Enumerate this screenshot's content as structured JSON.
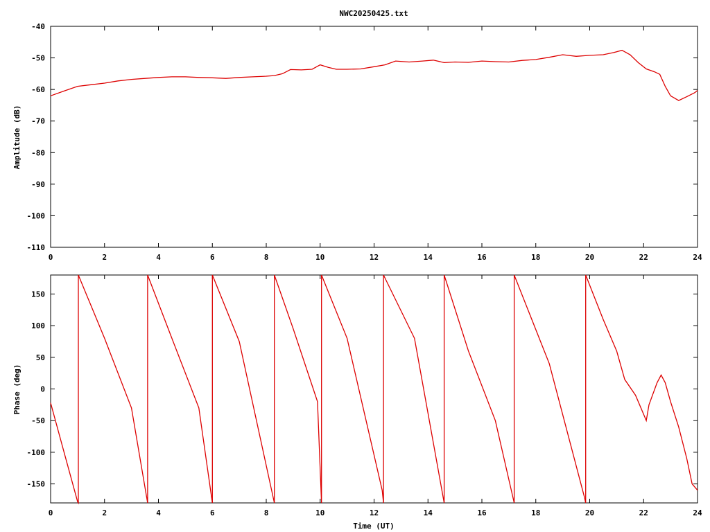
{
  "title": "NWC20250425.txt",
  "colors": {
    "series": "#dd0000",
    "axis": "#000000",
    "background": "#ffffff"
  },
  "chart_data": [
    {
      "type": "line",
      "ylabel": "Amplitude (dB)",
      "xlabel": "",
      "xlim": [
        0,
        24
      ],
      "ylim": [
        -110,
        -40
      ],
      "x_ticks": [
        0,
        2,
        4,
        6,
        8,
        10,
        12,
        14,
        16,
        18,
        20,
        22,
        24
      ],
      "y_ticks": [
        -40,
        -50,
        -60,
        -70,
        -80,
        -90,
        -100,
        -110
      ],
      "x_tick_labels": [
        "0",
        "2",
        "4",
        "6",
        "8",
        "10",
        "12",
        "14",
        "16",
        "18",
        "20",
        "22",
        "24"
      ],
      "y_tick_labels": [
        "-40",
        "-50",
        "-60",
        "-70",
        "-80",
        "-90",
        "-100",
        "-110"
      ],
      "grid": false,
      "series": [
        {
          "x": [
            0,
            0.5,
            1,
            1.5,
            2,
            2.5,
            3,
            3.5,
            4,
            4.5,
            5,
            5.5,
            6,
            6.5,
            7,
            7.5,
            8,
            8.3,
            8.6,
            8.9,
            9.3,
            9.7,
            10,
            10.3,
            10.6,
            11,
            11.5,
            12,
            12.4,
            12.8,
            13.3,
            13.8,
            14.2,
            14.6,
            15,
            15.5,
            16,
            16.5,
            17,
            17.5,
            18,
            18.5,
            19,
            19.5,
            20,
            20.5,
            20.9,
            21.2,
            21.5,
            21.8,
            22.1,
            22.4,
            22.6,
            22.8,
            23,
            23.3,
            23.6,
            23.9,
            24
          ],
          "y": [
            -62,
            -60.5,
            -59,
            -58.5,
            -58,
            -57.3,
            -56.8,
            -56.5,
            -56.2,
            -56,
            -56,
            -56.2,
            -56.3,
            -56.5,
            -56.2,
            -56,
            -55.8,
            -55.6,
            -55,
            -53.7,
            -53.8,
            -53.6,
            -52.2,
            -53,
            -53.6,
            -53.6,
            -53.5,
            -52.8,
            -52.2,
            -51,
            -51.3,
            -51,
            -50.7,
            -51.5,
            -51.3,
            -51.4,
            -51,
            -51.2,
            -51.3,
            -50.8,
            -50.5,
            -49.8,
            -49,
            -49.5,
            -49.2,
            -49,
            -48.3,
            -47.6,
            -49,
            -51.5,
            -53.5,
            -54.4,
            -55.2,
            -59,
            -62,
            -63.5,
            -62.3,
            -61,
            -60.3
          ]
        }
      ]
    },
    {
      "type": "line",
      "ylabel": "Phase (deg)",
      "xlabel": "Time (UT)",
      "xlim": [
        0,
        24
      ],
      "ylim": [
        -180,
        180
      ],
      "x_ticks": [
        0,
        2,
        4,
        6,
        8,
        10,
        12,
        14,
        16,
        18,
        20,
        22,
        24
      ],
      "y_ticks": [
        150,
        100,
        50,
        0,
        -50,
        -100,
        -150
      ],
      "x_tick_labels": [
        "0",
        "2",
        "4",
        "6",
        "8",
        "10",
        "12",
        "14",
        "16",
        "18",
        "20",
        "22",
        "24"
      ],
      "y_tick_labels": [
        "150",
        "100",
        "50",
        "0",
        "-50",
        "-100",
        "-150"
      ],
      "grid": false,
      "series": [
        {
          "x": [
            0,
            0.5,
            1.0,
            1.03,
            1.03,
            2.0,
            3.0,
            3.6,
            3.6,
            4.5,
            5.5,
            6.0,
            6.0,
            7.0,
            8.3,
            8.3,
            9.0,
            9.9,
            10.05,
            10.05,
            11.0,
            12.3,
            12.35,
            12.35,
            13.5,
            14.6,
            14.6,
            15.5,
            16.5,
            17.2,
            17.2,
            18.5,
            19.8,
            19.85,
            19.85,
            20.5,
            21.0,
            21.3,
            21.7,
            22.0,
            22.1,
            22.2,
            22.5,
            22.65,
            22.8,
            23.0,
            23.3,
            23.6,
            23.8,
            24.0
          ],
          "y": [
            -22,
            -100,
            -178,
            -180,
            180,
            80,
            -30,
            -180,
            180,
            80,
            -30,
            -180,
            180,
            75,
            -180,
            180,
            95,
            -20,
            -180,
            180,
            80,
            -160,
            -180,
            180,
            80,
            -180,
            180,
            60,
            -50,
            -180,
            180,
            40,
            -170,
            -180,
            180,
            110,
            60,
            15,
            -10,
            -40,
            -50,
            -25,
            10,
            22,
            10,
            -20,
            -60,
            -110,
            -150,
            -160
          ]
        }
      ]
    }
  ]
}
